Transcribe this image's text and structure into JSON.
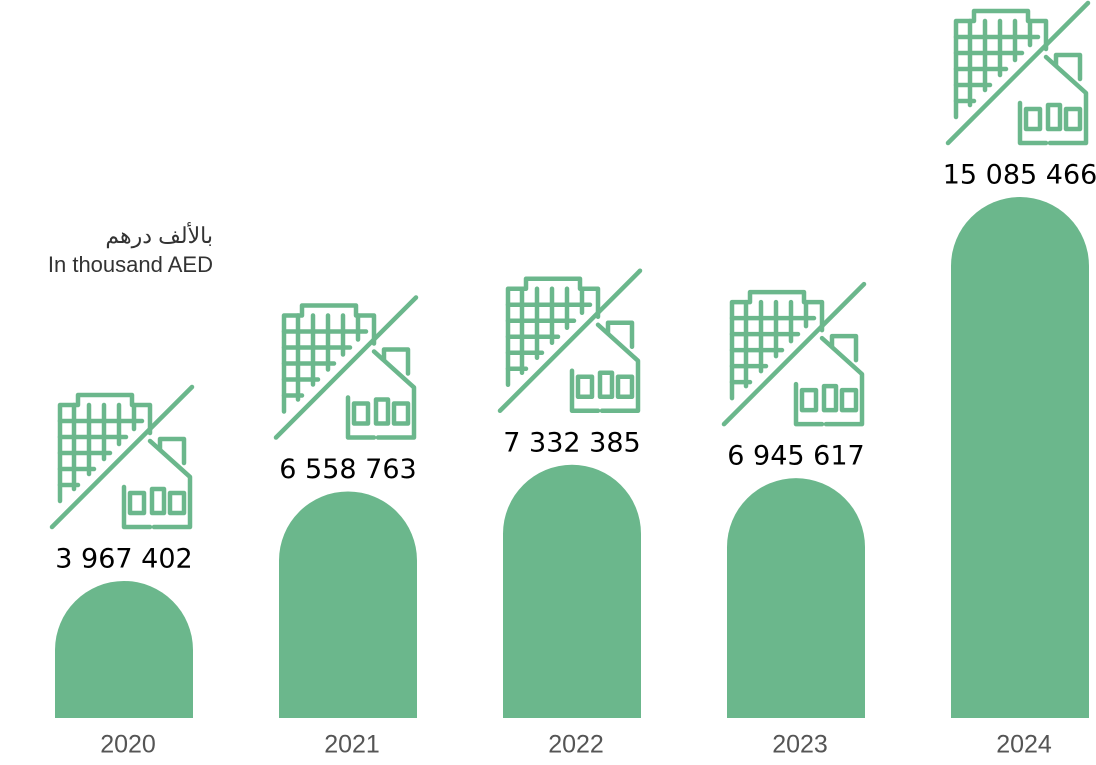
{
  "chart_data": {
    "type": "bar",
    "unit_label_ar": "بالألف درهم",
    "unit_label": "In thousand AED",
    "categories": [
      "2020",
      "2021",
      "2022",
      "2023",
      "2024"
    ],
    "values": [
      3967402,
      6558763,
      7332385,
      6945617,
      15085466
    ],
    "value_labels": [
      "3 967 402",
      "6 558 763",
      "7 332 385",
      "6 945 617",
      "15 085 466"
    ],
    "color": "#6bb78c"
  }
}
